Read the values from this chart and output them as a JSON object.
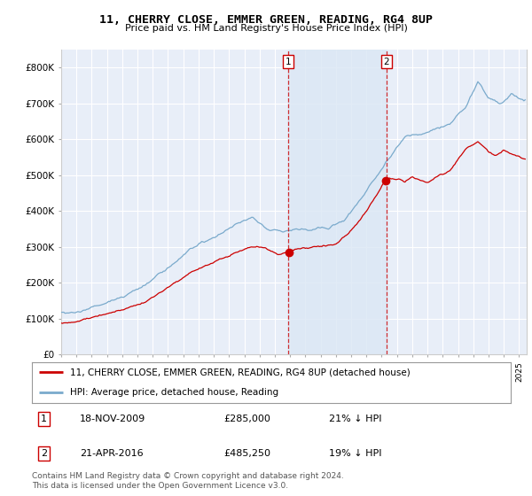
{
  "title1": "11, CHERRY CLOSE, EMMER GREEN, READING, RG4 8UP",
  "title2": "Price paid vs. HM Land Registry's House Price Index (HPI)",
  "background_color": "#ffffff",
  "plot_bg_color": "#e8eef8",
  "shade_color": "#dce8f5",
  "grid_color": "#ffffff",
  "line1_color": "#cc0000",
  "line2_color": "#7aaacc",
  "marker1_date": 2009.88,
  "marker2_date": 2016.3,
  "marker1_price": 285000,
  "marker2_price": 485250,
  "annotation1": [
    "1",
    "18-NOV-2009",
    "£285,000",
    "21% ↓ HPI"
  ],
  "annotation2": [
    "2",
    "21-APR-2016",
    "£485,250",
    "19% ↓ HPI"
  ],
  "legend1": "11, CHERRY CLOSE, EMMER GREEN, READING, RG4 8UP (detached house)",
  "legend2": "HPI: Average price, detached house, Reading",
  "footer": "Contains HM Land Registry data © Crown copyright and database right 2024.\nThis data is licensed under the Open Government Licence v3.0.",
  "ylim": [
    0,
    850000
  ],
  "yticks": [
    0,
    100000,
    200000,
    300000,
    400000,
    500000,
    600000,
    700000,
    800000
  ],
  "ytick_labels": [
    "£0",
    "£100K",
    "£200K",
    "£300K",
    "£400K",
    "£500K",
    "£600K",
    "£700K",
    "£800K"
  ],
  "xmin": 1995.0,
  "xmax": 2025.5
}
